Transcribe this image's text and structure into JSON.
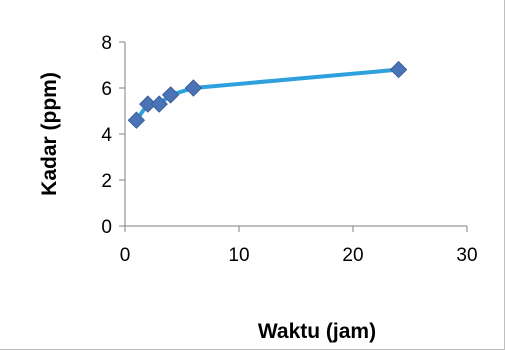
{
  "chart_data": {
    "type": "scatter",
    "title": "",
    "xlabel": "Waktu (jam)",
    "ylabel": "Kadar (ppm)",
    "xlim": [
      0,
      30
    ],
    "ylim": [
      0,
      8
    ],
    "x_ticks": [
      0,
      10,
      20,
      30
    ],
    "y_ticks": [
      0,
      2,
      4,
      6,
      8
    ],
    "grid": false,
    "legend": "none",
    "series": [
      {
        "points": [
          {
            "x": 1,
            "y": 4.6
          },
          {
            "x": 2,
            "y": 5.3
          },
          {
            "x": 3,
            "y": 5.3
          },
          {
            "x": 4,
            "y": 5.7
          },
          {
            "x": 6,
            "y": 6.0
          },
          {
            "x": 24,
            "y": 6.8
          }
        ],
        "marker": "diamond",
        "marker_color": "#4A74B7",
        "line_color": "#2FA0DE"
      }
    ],
    "axis_color": "#7f7f7f"
  }
}
